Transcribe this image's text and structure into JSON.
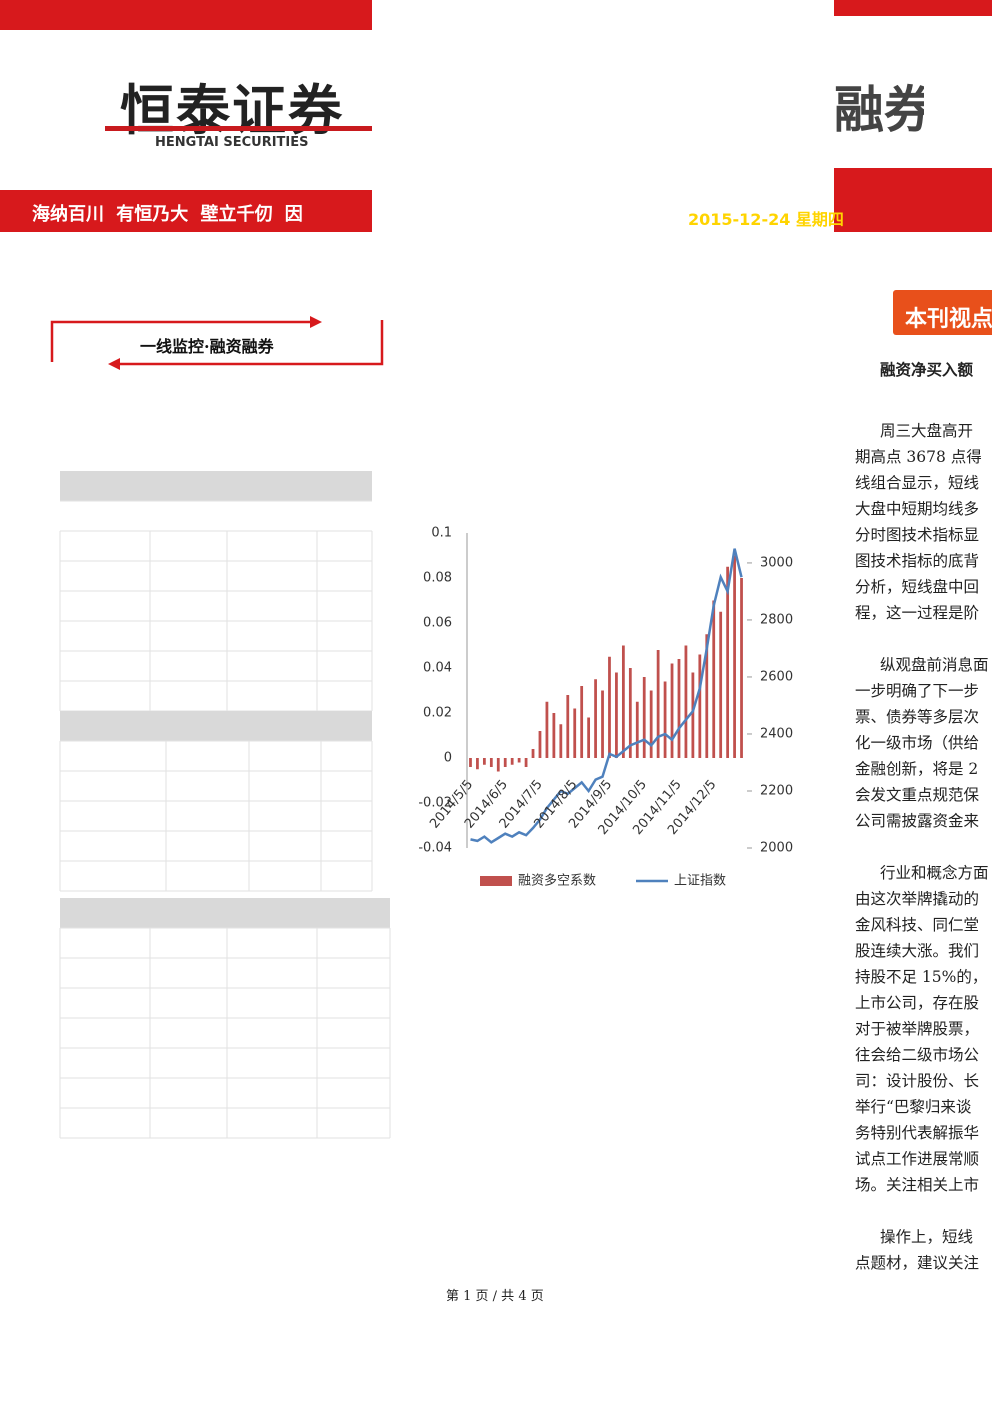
{
  "header": {
    "logo": "恒泰证券",
    "logo_en": "HENGTAI SECURITIES",
    "logo_right": "融券",
    "slogan": "海纳百川 有恒乃大 壁立千仞 因",
    "date": "2015-12-24 星期四"
  },
  "section_title": "一线监控·融资融券",
  "sidebar": {
    "title": "本刊视点",
    "subtitle": "融资净买入额",
    "paragraphs": [
      [
        "周三大盘高开",
        "期高点 3678 点得",
        "线组合显示，短线",
        "大盘中短期均线多",
        "分时图技术指标显",
        "图技术指标的底背",
        "分析，短线盘中回",
        "程，这一过程是阶"
      ],
      [
        "纵观盘前消息面",
        "一步明确了下一步",
        "票、债券等多层次",
        "化一级市场（供给",
        "金融创新，将是 2",
        "会发文重点规范保",
        "公司需披露资金来"
      ],
      [
        "行业和概念方面",
        "由这次举牌撬动的",
        "金风科技、同仁堂",
        "股连续大涨。我们",
        "持股不足 15%的，",
        "上市公司，存在股",
        "对于被举牌股票，",
        "往会给二级市场公",
        "司：设计股份、长",
        "举行“巴黎归来谈",
        "务特别代表解振华",
        "试点工作进展常顺",
        "场。关注相关上市"
      ],
      [
        "操作上，短线",
        "点题材，建议关注"
      ]
    ]
  },
  "footer": "第 1 页 / 共 4 页",
  "chart_data": {
    "type": "bar",
    "categories": [
      "2014/5/5",
      null,
      null,
      null,
      null,
      "2014/6/5",
      null,
      null,
      null,
      null,
      "2014/7/5",
      null,
      null,
      null,
      null,
      "2014/8/5",
      null,
      null,
      null,
      null,
      "2014/9/5",
      null,
      null,
      null,
      null,
      "2014/10/5",
      null,
      null,
      null,
      null,
      "2014/11/5",
      null,
      null,
      null,
      null,
      "2014/12/5",
      null,
      null,
      null,
      null
    ],
    "series": [
      {
        "name": "融资多空系数",
        "color": "#c0504d",
        "values": [
          -0.004,
          -0.005,
          -0.003,
          -0.004,
          -0.006,
          -0.004,
          -0.003,
          -0.002,
          -0.004,
          0.004,
          0.012,
          0.025,
          0.02,
          0.015,
          0.028,
          0.022,
          0.032,
          0.018,
          0.035,
          0.03,
          0.045,
          0.038,
          0.05,
          0.04,
          0.025,
          0.036,
          0.03,
          0.048,
          0.034,
          0.042,
          0.044,
          0.05,
          0.038,
          0.046,
          0.055,
          0.07,
          0.065,
          0.085,
          0.09,
          0.08
        ]
      },
      {
        "name": "上证指数",
        "color": "#4f81bd",
        "type": "line",
        "axis": "y2",
        "values": [
          2030,
          2025,
          2040,
          2020,
          2035,
          2050,
          2040,
          2055,
          2045,
          2070,
          2100,
          2140,
          2170,
          2200,
          2190,
          2210,
          2230,
          2200,
          2240,
          2250,
          2330,
          2320,
          2340,
          2360,
          2370,
          2380,
          2360,
          2390,
          2400,
          2380,
          2420,
          2450,
          2480,
          2560,
          2700,
          2850,
          2950,
          2900,
          3050,
          2950
        ]
      }
    ],
    "ylim": [
      -0.04,
      0.1
    ],
    "yticks": [
      0.1,
      0.08,
      0.06,
      0.04,
      0.02,
      0,
      -0.02,
      -0.04
    ],
    "y2lim": [
      2000,
      3105
    ],
    "y2ticks": [
      3000,
      2800,
      2600,
      2400,
      2200,
      2000
    ],
    "legend": "bottom"
  }
}
